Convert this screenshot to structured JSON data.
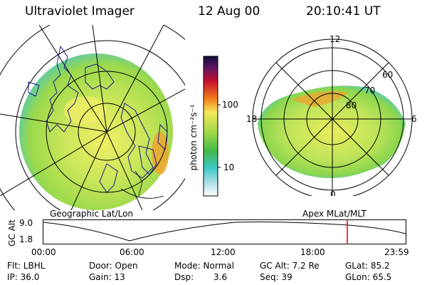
{
  "header": {
    "instrument": "Ultraviolet Imager",
    "date": "12 Aug 00",
    "time": "20:10:41  UT"
  },
  "left_panel": {
    "caption": "Geographic Lat/Lon",
    "image_description": "auroral UV image on geographic projection with coastlines"
  },
  "right_panel": {
    "caption": "Apex  MLat/MLT",
    "mlt_labels": [
      "12",
      "18",
      "6",
      "0"
    ],
    "mlat_labels": [
      "60",
      "70",
      "80"
    ]
  },
  "colorbar": {
    "unit_label": "photon cm⁻²s⁻¹",
    "tick_labels": [
      "100",
      "10"
    ],
    "scale": "log"
  },
  "altitude_plot": {
    "ylabel": "GC Alt",
    "y_ticks": [
      "9.0",
      "1.8"
    ],
    "x_ticks": [
      "00:00",
      "06:00",
      "12:00",
      "18:00",
      "23:59"
    ],
    "marker_color": "#e00000"
  },
  "status": {
    "filter": "Flt: LBHL",
    "ip": "IP: 36.0",
    "door": "Door: Open",
    "gain": "Gain: 13",
    "mode": "Mode: Normal",
    "dsp_label": "Dsp:",
    "dsp_value": "3.6",
    "gc_alt": "GC Alt: 7.2 Re",
    "seq": "Seq: 39",
    "glat": "GLat:  85.2",
    "glon": "GLon:  65.5"
  },
  "colors": {
    "aurora_main": "#b8e04a",
    "aurora_edge": "#4ec9c0",
    "aurora_hot": "#f2a12e"
  }
}
